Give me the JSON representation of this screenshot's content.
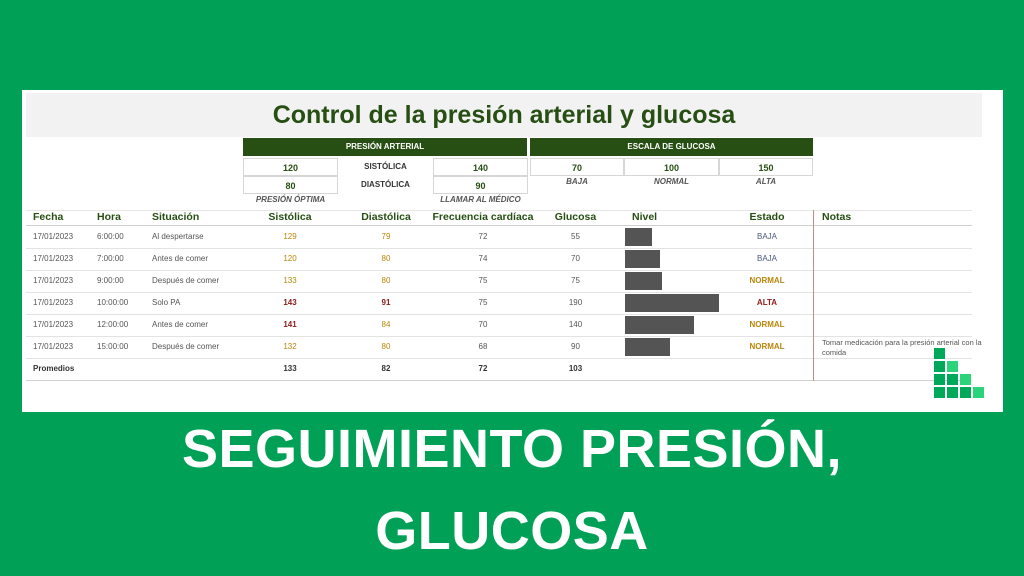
{
  "title": "Control de la presión arterial y glucosa",
  "pressure": {
    "header": "PRESIÓN ARTERIAL",
    "sys_label": "SISTÓLICA",
    "dia_label": "DIASTÓLICA",
    "optimal_sys": "120",
    "optimal_dia": "80",
    "call_sys": "140",
    "call_dia": "90",
    "optimal_caption": "PRESIÓN ÓPTIMA",
    "call_caption": "LLAMAR AL MÉDICO"
  },
  "glucose_scale": {
    "header": "ESCALA DE GLUCOSA",
    "low": "70",
    "normal": "100",
    "high": "150",
    "low_label": "BAJA",
    "normal_label": "NORMAL",
    "high_label": "ALTA"
  },
  "columns": {
    "fecha": "Fecha",
    "hora": "Hora",
    "situacion": "Situación",
    "sistolica": "Sistólica",
    "diastolica": "Diastólica",
    "frecuencia": "Frecuencia cardíaca",
    "glucosa": "Glucosa",
    "nivel": "Nivel",
    "estado": "Estado",
    "notas": "Notas"
  },
  "rows": [
    {
      "fecha": "17/01/2023",
      "hora": "6:00:00",
      "situacion": "Al despertarse",
      "sis": "129",
      "dia": "79",
      "fc": "72",
      "glu": "55",
      "level": 55,
      "estado": "BAJA"
    },
    {
      "fecha": "17/01/2023",
      "hora": "7:00:00",
      "situacion": "Antes de comer",
      "sis": "120",
      "dia": "80",
      "fc": "74",
      "glu": "70",
      "level": 70,
      "estado": "BAJA"
    },
    {
      "fecha": "17/01/2023",
      "hora": "9:00:00",
      "situacion": "Después de comer",
      "sis": "133",
      "dia": "80",
      "fc": "75",
      "glu": "75",
      "level": 75,
      "estado": "NORMAL"
    },
    {
      "fecha": "17/01/2023",
      "hora": "10:00:00",
      "situacion": "Solo PA",
      "sis": "143",
      "dia": "91",
      "fc": "75",
      "glu": "190",
      "level": 190,
      "estado": "ALTA"
    },
    {
      "fecha": "17/01/2023",
      "hora": "12:00:00",
      "situacion": "Antes de comer",
      "sis": "141",
      "dia": "84",
      "fc": "70",
      "glu": "140",
      "level": 140,
      "estado": "NORMAL"
    },
    {
      "fecha": "17/01/2023",
      "hora": "15:00:00",
      "situacion": "Después de comer",
      "sis": "132",
      "dia": "80",
      "fc": "68",
      "glu": "90",
      "level": 90,
      "estado": "NORMAL"
    }
  ],
  "averages": {
    "label": "Promedios",
    "sis": "133",
    "dia": "82",
    "fc": "72",
    "glu": "103"
  },
  "note": "Tomar medicación para la presión arterial con la comida",
  "bottom_line1": "SEGUIMIENTO PRESIÓN,",
  "bottom_line2": "GLUCOSA",
  "colors": {
    "background": "#00a157",
    "header_green": "#274e13",
    "normal_value": "#b8860b",
    "high_value": "#8b1a1a",
    "bar": "#545454"
  }
}
